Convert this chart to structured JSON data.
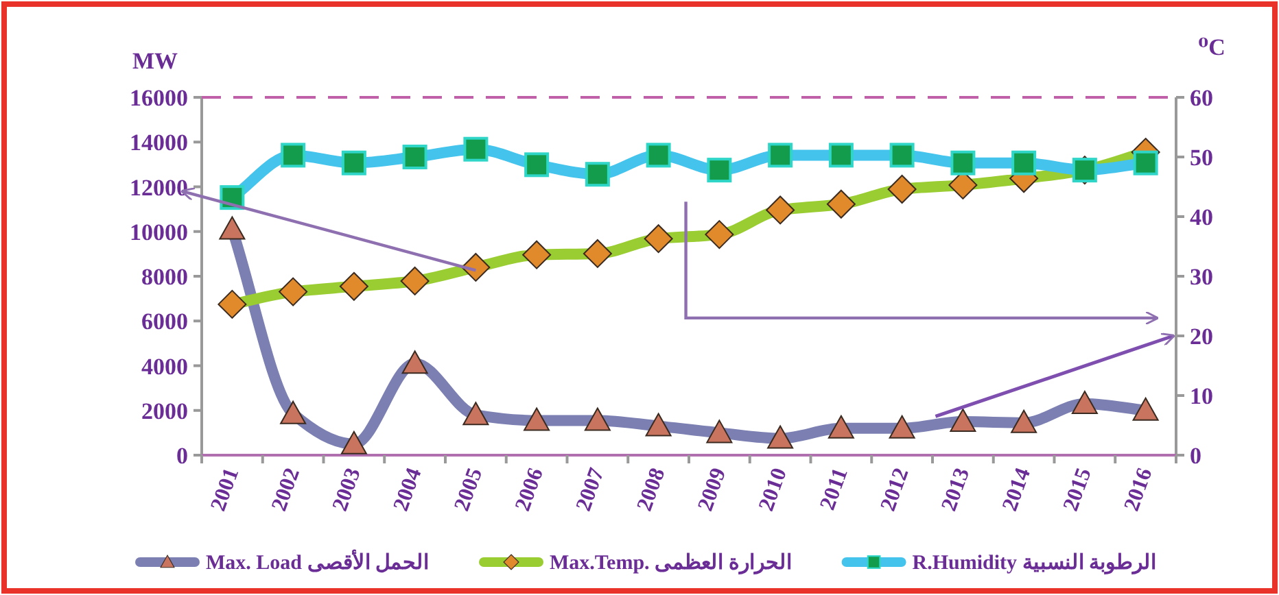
{
  "chart_data": {
    "type": "line",
    "ylabel": "MW",
    "y2label": "⁰C",
    "categories": [
      "2001",
      "2002",
      "2003",
      "2004",
      "2005",
      "2006",
      "2007",
      "2008",
      "2009",
      "2010",
      "2011",
      "2012",
      "2013",
      "2014",
      "2015",
      "2016"
    ],
    "series": [
      {
        "name": "Max. Load الحمل الأقصى",
        "color": "#7b7fb2",
        "marker": "triangle",
        "values": [
          10100,
          1850,
          500,
          4100,
          1800,
          1550,
          1550,
          1300,
          1000,
          750,
          1200,
          1200,
          1500,
          1450,
          2300,
          2000
        ]
      },
      {
        "name": "Max.Temp. الحرارة العظمى",
        "color": "#9acd32",
        "marker": "diamond",
        "axis": "y2",
        "values": [
          25.3,
          27.4,
          28.3,
          29.2,
          31.5,
          33.6,
          33.8,
          36.3,
          37,
          41.1,
          42.1,
          44.6,
          45.3,
          46.4,
          47.8,
          50.8
        ]
      },
      {
        "name": "R.Humidity الرطوبة النسبية",
        "color": "#44c4ec",
        "marker": "square",
        "axis": "y2",
        "values": [
          43.2,
          50.3,
          49,
          50,
          51.3,
          48.7,
          47.1,
          50.3,
          47.8,
          50.3,
          50.3,
          50.3,
          49,
          49,
          47.8,
          49
        ]
      }
    ],
    "ylim": [
      0,
      16000
    ],
    "yticks": [
      0,
      2000,
      4000,
      6000,
      8000,
      10000,
      12000,
      14000,
      16000
    ],
    "y2lim": [
      0,
      60
    ],
    "y2ticks": [
      0,
      10,
      20,
      30,
      40,
      50,
      60
    ],
    "ref_lines": [
      {
        "axis": "y",
        "value": 16000,
        "color": "#c060a8",
        "line_style": "dashed"
      }
    ],
    "grid": false,
    "legend": "bottom"
  }
}
